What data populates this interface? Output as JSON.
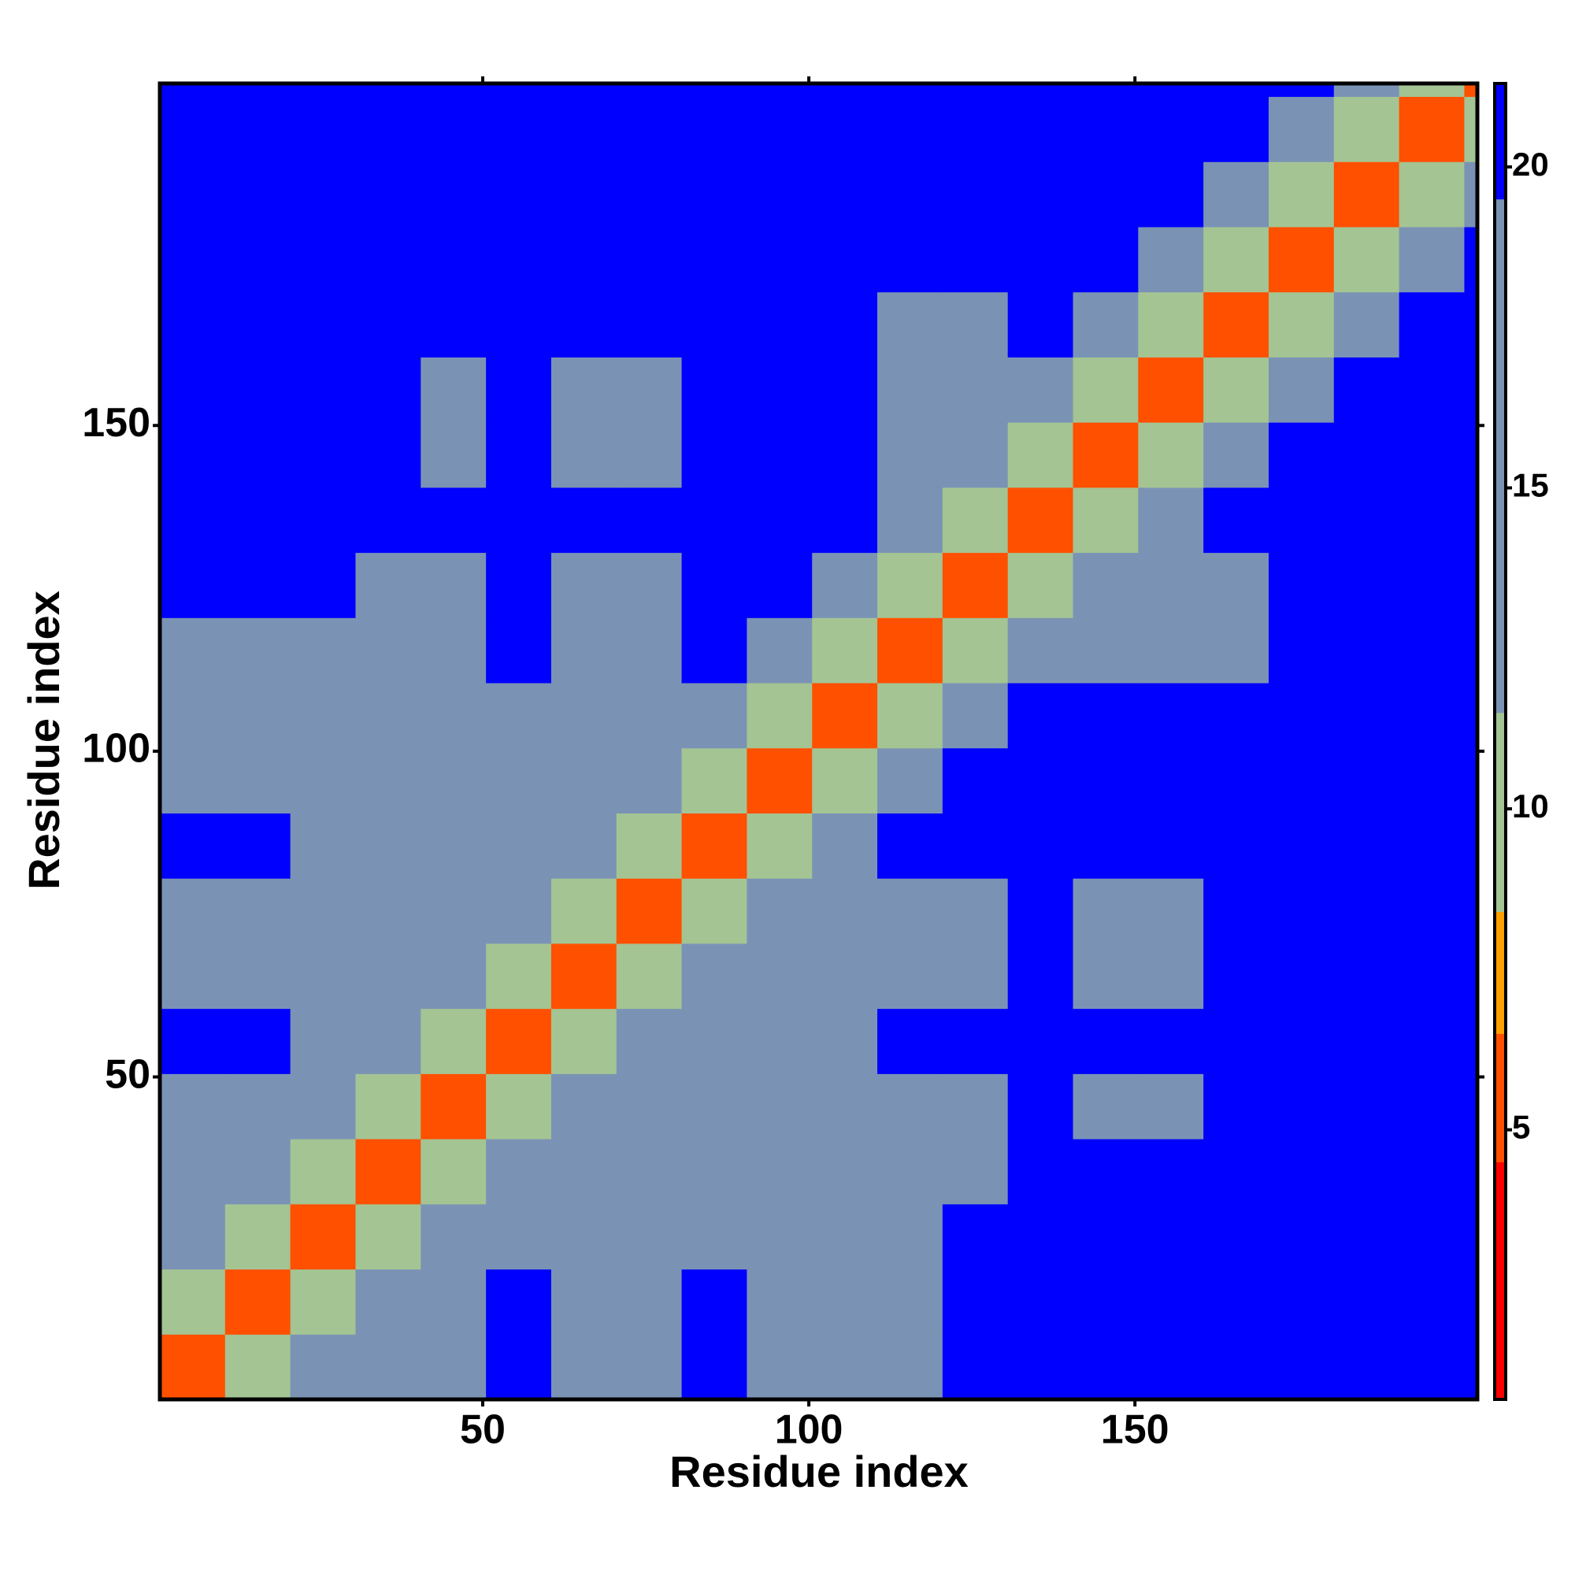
{
  "chart_data": {
    "type": "heatmap",
    "x_label": "Residue index",
    "y_label": "Residue index",
    "xlim": [
      0.5,
      202.5
    ],
    "ylim": [
      0.5,
      202.5
    ],
    "xticks": [
      50,
      100,
      150
    ],
    "yticks": [
      50,
      100,
      150
    ],
    "x_bins": [
      0.5,
      10.5,
      20.5,
      30.5,
      40.5,
      50.5,
      60.5,
      70.5,
      80.5,
      90.5,
      100.5,
      110.5,
      120.5,
      130.5,
      140.5,
      150.5,
      160.5,
      170.5,
      180.5,
      190.5,
      200.5,
      202.5
    ],
    "y_bins": [
      0.5,
      10.5,
      20.5,
      30.5,
      40.5,
      50.5,
      60.5,
      70.5,
      80.5,
      90.5,
      100.5,
      110.5,
      120.5,
      130.5,
      140.5,
      150.5,
      160.5,
      170.5,
      180.5,
      190.5,
      200.5,
      202.5
    ],
    "z": [
      [
        6,
        11,
        15,
        15,
        15,
        21,
        17,
        17,
        21,
        16,
        16,
        16,
        21,
        21,
        21,
        21,
        21,
        21,
        21,
        21,
        21
      ],
      [
        11,
        6,
        11,
        15,
        15,
        21,
        17,
        17,
        21,
        16,
        16,
        16,
        21,
        21,
        21,
        21,
        21,
        21,
        21,
        21,
        21
      ],
      [
        15,
        11,
        6,
        11,
        15,
        15,
        15,
        17,
        15,
        15,
        15,
        16,
        21,
        21,
        21,
        21,
        21,
        21,
        21,
        21,
        21
      ],
      [
        15,
        15,
        11,
        6,
        11,
        15,
        15,
        15,
        15,
        15,
        15,
        15,
        15,
        21,
        21,
        21,
        21,
        21,
        21,
        21,
        21
      ],
      [
        15,
        15,
        15,
        11,
        6,
        11,
        15,
        15,
        15,
        15,
        15,
        15,
        15,
        21,
        19,
        19,
        21,
        21,
        21,
        21,
        21
      ],
      [
        21,
        21,
        15,
        15,
        11,
        6,
        11,
        15,
        15,
        15,
        15,
        21,
        21,
        21,
        21,
        21,
        21,
        21,
        21,
        21,
        21
      ],
      [
        17,
        17,
        15,
        15,
        15,
        11,
        6,
        11,
        15,
        15,
        15,
        15,
        15,
        21,
        19,
        19,
        21,
        21,
        21,
        21,
        21
      ],
      [
        17,
        17,
        17,
        15,
        15,
        15,
        11,
        6,
        11,
        15,
        15,
        15,
        15,
        21,
        19,
        19,
        21,
        21,
        21,
        21,
        21
      ],
      [
        21,
        21,
        15,
        15,
        15,
        15,
        15,
        11,
        6,
        11,
        15,
        21,
        21,
        21,
        21,
        21,
        21,
        21,
        21,
        21,
        21
      ],
      [
        16,
        16,
        15,
        15,
        15,
        15,
        15,
        15,
        11,
        6,
        11,
        18,
        21,
        21,
        21,
        21,
        21,
        21,
        21,
        21,
        21
      ],
      [
        16,
        16,
        15,
        15,
        15,
        15,
        15,
        15,
        15,
        11,
        6,
        11,
        18,
        21,
        21,
        21,
        21,
        21,
        21,
        21,
        21
      ],
      [
        16,
        16,
        16,
        15,
        15,
        21,
        15,
        15,
        21,
        18,
        11,
        6,
        11,
        15,
        15,
        15,
        15,
        21,
        21,
        21,
        21
      ],
      [
        21,
        21,
        21,
        15,
        15,
        21,
        15,
        15,
        21,
        21,
        18,
        11,
        6,
        11,
        15,
        15,
        15,
        21,
        21,
        21,
        21
      ],
      [
        21,
        21,
        21,
        21,
        21,
        21,
        21,
        21,
        21,
        21,
        21,
        15,
        11,
        6,
        11,
        18,
        21,
        21,
        21,
        21,
        21
      ],
      [
        21,
        21,
        21,
        21,
        19,
        21,
        19,
        19,
        21,
        21,
        21,
        15,
        15,
        11,
        6,
        11,
        18,
        21,
        21,
        21,
        21
      ],
      [
        21,
        21,
        21,
        21,
        19,
        21,
        19,
        19,
        21,
        21,
        21,
        15,
        15,
        18,
        11,
        6,
        11,
        18,
        21,
        21,
        21
      ],
      [
        21,
        21,
        21,
        21,
        21,
        21,
        21,
        21,
        21,
        21,
        21,
        15,
        15,
        21,
        18,
        11,
        6,
        11,
        18,
        21,
        21
      ],
      [
        21,
        21,
        21,
        21,
        21,
        21,
        21,
        21,
        21,
        21,
        21,
        21,
        21,
        21,
        21,
        18,
        11,
        6,
        11,
        18,
        21
      ],
      [
        21,
        21,
        21,
        21,
        21,
        21,
        21,
        21,
        21,
        21,
        21,
        21,
        21,
        21,
        21,
        21,
        18,
        11,
        6,
        11,
        18
      ],
      [
        21,
        21,
        21,
        21,
        21,
        21,
        21,
        21,
        21,
        21,
        21,
        21,
        21,
        21,
        21,
        21,
        21,
        18,
        11,
        6,
        11
      ],
      [
        21,
        21,
        21,
        21,
        21,
        21,
        21,
        21,
        21,
        21,
        21,
        21,
        21,
        21,
        21,
        21,
        21,
        21,
        18,
        11,
        6
      ]
    ],
    "colorbar": {
      "ylim": [
        0.8,
        21.3
      ],
      "yticks": [
        5,
        10,
        15,
        20
      ],
      "bounds": [
        0.8,
        4.5,
        6.5,
        8.4,
        11.5,
        19.5,
        21.3
      ],
      "colors": [
        "#ff0000",
        "#ff5000",
        "#ffa000",
        "#a4c493",
        "#7a93b5",
        "#0000ff"
      ]
    }
  }
}
